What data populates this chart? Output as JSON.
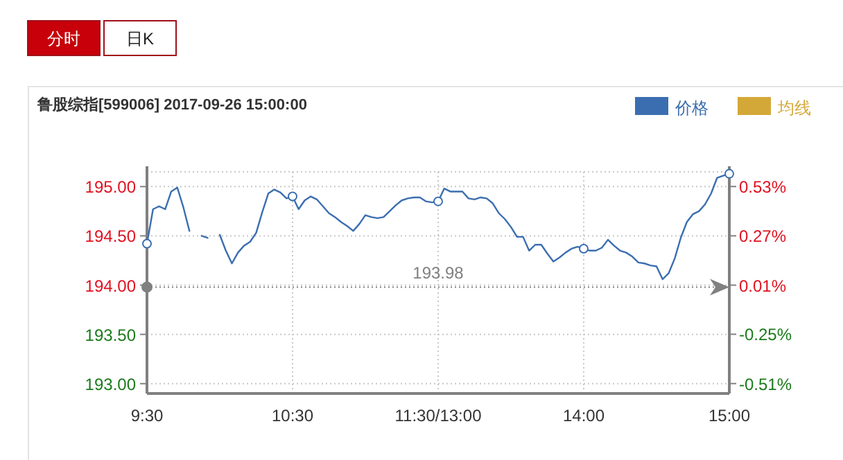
{
  "chart_data": {
    "type": "line",
    "title": "鲁股综指[599006] 2017-09-26 15:00:00",
    "annotations": [
      "分时",
      "日K"
    ],
    "categories": [
      "9:30",
      null,
      null,
      null,
      null,
      null,
      null,
      null,
      null,
      null,
      null,
      null,
      null,
      null,
      null,
      null,
      null,
      null,
      null,
      null,
      null,
      null,
      null,
      null,
      "10:30",
      null,
      null,
      null,
      null,
      null,
      null,
      null,
      null,
      null,
      null,
      null,
      null,
      null,
      null,
      null,
      null,
      null,
      null,
      null,
      null,
      null,
      null,
      null,
      "11:30/13:00",
      null,
      null,
      null,
      null,
      null,
      null,
      null,
      null,
      null,
      null,
      null,
      null,
      null,
      null,
      null,
      null,
      null,
      null,
      null,
      null,
      null,
      null,
      null,
      "14:00",
      null,
      null,
      null,
      null,
      null,
      null,
      null,
      null,
      null,
      null,
      null,
      null,
      null,
      null,
      null,
      null,
      null,
      null,
      null,
      null,
      null,
      null,
      null,
      "15:00"
    ],
    "series": [
      {
        "name": "价格",
        "color": "#3b6eb0",
        "values": [
          194.42,
          194.77,
          194.8,
          194.77,
          194.95,
          194.99,
          194.79,
          194.55,
          null,
          194.5,
          194.48,
          null,
          194.51,
          194.35,
          194.22,
          194.33,
          194.4,
          194.44,
          194.53,
          194.74,
          194.93,
          194.97,
          194.94,
          194.88,
          194.9,
          194.77,
          194.86,
          194.9,
          194.87,
          194.8,
          194.73,
          194.69,
          194.64,
          194.6,
          194.55,
          194.62,
          194.71,
          194.69,
          194.68,
          194.69,
          194.75,
          194.81,
          194.86,
          194.88,
          194.89,
          194.89,
          194.85,
          194.84,
          194.85,
          194.98,
          194.95,
          194.95,
          194.95,
          194.88,
          194.87,
          194.89,
          194.88,
          194.83,
          194.73,
          194.67,
          194.59,
          194.49,
          194.49,
          194.35,
          194.41,
          194.41,
          194.32,
          194.24,
          194.28,
          194.33,
          194.37,
          194.39,
          194.37,
          194.35,
          194.35,
          194.38,
          194.46,
          194.4,
          194.35,
          194.33,
          194.29,
          194.23,
          194.22,
          194.2,
          194.19,
          194.06,
          194.12,
          194.27,
          194.48,
          194.64,
          194.72,
          194.75,
          194.82,
          194.93,
          195.09,
          195.11,
          195.13
        ]
      },
      {
        "type": "scatter",
        "marker": "circle",
        "color": "#3b6eb0",
        "x": [
          "9:30",
          "10:30",
          "11:30/13:00",
          "14:00",
          "15:00"
        ],
        "values": [
          194.42,
          194.9,
          194.85,
          194.37,
          195.13
        ]
      },
      {
        "name": "均线",
        "color": "#d4a838",
        "values": [
          null,
          null,
          null,
          null,
          null,
          null,
          null,
          null,
          null,
          null,
          null,
          null,
          null,
          null,
          null,
          null,
          null,
          null,
          null,
          null,
          null,
          null,
          null,
          null,
          null,
          null,
          null,
          null,
          null,
          null,
          null,
          null,
          null,
          null,
          null,
          null,
          null,
          null,
          null,
          null,
          null,
          null,
          null,
          null,
          null,
          null,
          null,
          null,
          null,
          null,
          null,
          null,
          null,
          null,
          null,
          null,
          null,
          null,
          null,
          null,
          null,
          null,
          null,
          null,
          null,
          null,
          null,
          null,
          null,
          null,
          null,
          null,
          null,
          null,
          null,
          null,
          null,
          null,
          null,
          null,
          null,
          null,
          null,
          null,
          null,
          null,
          null,
          null,
          null,
          null,
          null,
          null,
          null,
          null,
          null,
          null,
          null
        ]
      }
    ],
    "ylim": [
      192.9,
      195.15
    ],
    "yticks": [
      {
        "value": 195,
        "label": "195.00"
      },
      {
        "value": 194.5,
        "label": "194.50"
      },
      {
        "value": 194,
        "label": "194.00"
      },
      {
        "value": 193.5,
        "label": "193.50"
      },
      {
        "value": 193,
        "label": "193.00"
      }
    ],
    "y2lim": [
      -0.557,
      0.603
    ],
    "y2ticks": [
      {
        "value": 0.526,
        "label": "0.53%"
      },
      {
        "value": 0.268,
        "label": "0.27%"
      },
      {
        "value": 0.01,
        "label": "0.01%"
      },
      {
        "value": -0.247,
        "label": "-0.25%"
      },
      {
        "value": -0.505,
        "label": "-0.51%"
      }
    ],
    "ref_lines": [
      {
        "axis": "y",
        "value": 193.98,
        "label": "193.98",
        "color": "#808080",
        "line_style": "dotted"
      }
    ],
    "grid": true,
    "legend": "top right",
    "line_style": "solid"
  }
}
